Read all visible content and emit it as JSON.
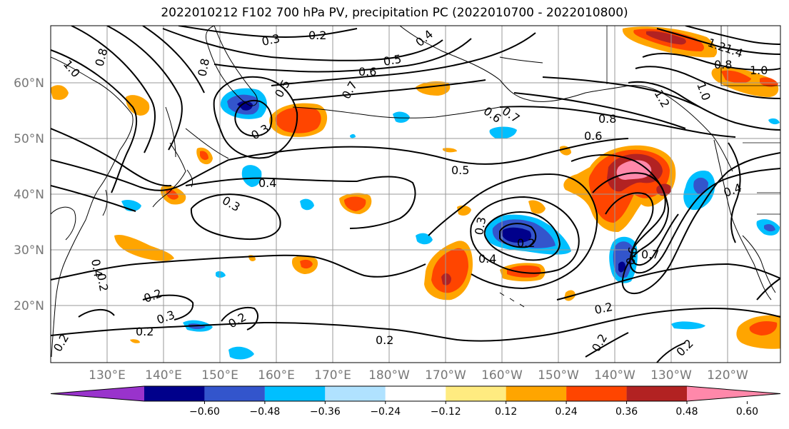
{
  "title": "2022010212 F102 700 hPa PV, precipitation PC (2022010700 - 2022010800)",
  "lat_labels": [
    "60°N",
    "50°N",
    "40°N",
    "30°N",
    "20°N"
  ],
  "lon_labels": [
    "130°E",
    "140°E",
    "150°E",
    "160°E",
    "170°E",
    "180°W",
    "170°W",
    "160°W",
    "150°W",
    "140°W",
    "130°W",
    "120°W"
  ],
  "contour_labels": [
    {
      "text": "0.2",
      "name": "pv-label-0-2-north"
    },
    {
      "text": "0.3",
      "name": "pv-label-0-3-north"
    },
    {
      "text": "0.4",
      "name": "pv-label-0-4-north"
    },
    {
      "text": "0.5",
      "name": "pv-label-0-5-north"
    },
    {
      "text": "0.6",
      "name": "pv-label-0-6-north"
    },
    {
      "text": "0.7",
      "name": "pv-label-0-7-north"
    },
    {
      "text": "0.8",
      "name": "pv-label-0-8-nw"
    },
    {
      "text": "0.8",
      "name": "pv-label-0-8-kamchatka"
    },
    {
      "text": "1.0",
      "name": "pv-label-1-0-west"
    },
    {
      "text": "0.6",
      "name": "pv-label-0-6-aleutian"
    },
    {
      "text": "0.7",
      "name": "pv-label-0-7-aleutian"
    },
    {
      "text": "0.5",
      "name": "pv-label-0-5-kurils"
    },
    {
      "text": "0.3",
      "name": "pv-label-0-3-kurils"
    },
    {
      "text": "0.4",
      "name": "pv-label-0-4-japan"
    },
    {
      "text": "0.3",
      "name": "pv-label-0-3-west-pacific"
    },
    {
      "text": "0.5",
      "name": "pv-label-0-5-central"
    },
    {
      "text": "0.8",
      "name": "pv-label-0-8-gulf"
    },
    {
      "text": "0.6",
      "name": "pv-label-0-6-gulf"
    },
    {
      "text": "0.4",
      "name": "pv-label-0-4-west-coast"
    },
    {
      "text": "0.4",
      "name": "pv-label-0-4-subtropic"
    },
    {
      "text": "0.2",
      "name": "pv-label-0-2-cutoff"
    },
    {
      "text": "0.3",
      "name": "pv-label-0-3-cutoff"
    },
    {
      "text": "0.6",
      "name": "pv-label-0-6-trough"
    },
    {
      "text": "0.7",
      "name": "pv-label-0-7-trough"
    },
    {
      "text": "0.2",
      "name": "pv-label-0-2-east-tropics"
    },
    {
      "text": "0.2",
      "name": "pv-label-0-2-south-east"
    },
    {
      "text": "0.2",
      "name": "pv-label-0-2-south"
    },
    {
      "text": "0.2",
      "name": "pv-label-0-2-sw-1"
    },
    {
      "text": "0.3",
      "name": "pv-label-0-3-sw"
    },
    {
      "text": "0.2",
      "name": "pv-label-0-2-sw-2"
    },
    {
      "text": "0.2",
      "name": "pv-label-0-2-sw-3"
    },
    {
      "text": "0.4",
      "name": "pv-label-0-4-west-edge"
    },
    {
      "text": "0.2",
      "name": "pv-label-0-2-west-edge"
    },
    {
      "text": "1.0",
      "name": "pv-label-1-0-canada"
    },
    {
      "text": "0.8",
      "name": "pv-label-0-8-canada"
    },
    {
      "text": "1.2",
      "name": "pv-label-1-2-canada"
    },
    {
      "text": "1.4",
      "name": "pv-label-1-4-canada"
    },
    {
      "text": "1.0",
      "name": "pv-label-1-0-bc"
    },
    {
      "text": "1.2",
      "name": "pv-label-1-2-bc"
    },
    {
      "text": "0.2",
      "name": "pv-label-0-2-sw-corner"
    },
    {
      "text": "0.2",
      "name": "pv-label-0-2-se-corner"
    }
  ],
  "colorbar": {
    "colors": [
      "#9933CC",
      "#00008B",
      "#3355CC",
      "#00BFFF",
      "#B0E2FF",
      "#FFFFFF",
      "#FFEB80",
      "#FFA500",
      "#FF4500",
      "#B22222",
      "#FF88AA"
    ],
    "labels": [
      "−0.60",
      "−0.48",
      "−0.36",
      "−0.24",
      "−0.12",
      "0.12",
      "0.24",
      "0.36",
      "0.48",
      "0.60"
    ]
  }
}
